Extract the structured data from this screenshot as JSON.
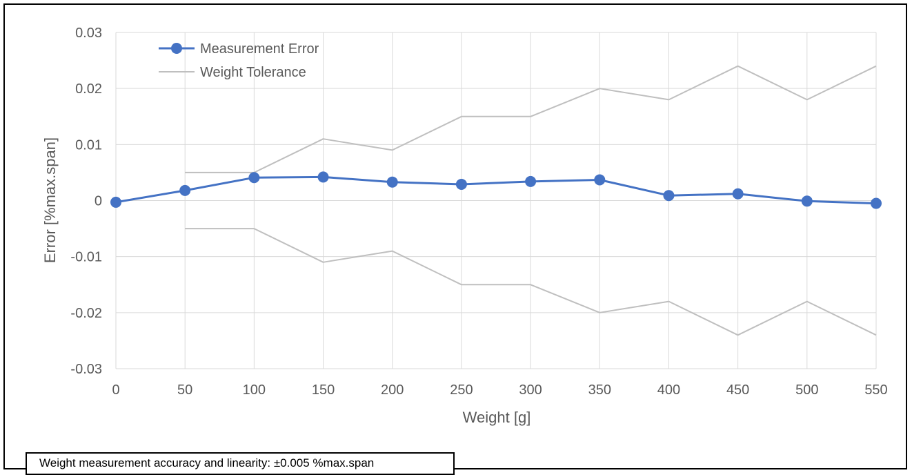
{
  "chart_data": {
    "type": "line",
    "xlabel": "Weight [g]",
    "ylabel": "Error [%max.span]",
    "xlim": [
      0,
      550
    ],
    "ylim": [
      -0.03,
      0.03
    ],
    "x_ticks": [
      "0",
      "50",
      "100",
      "150",
      "200",
      "250",
      "300",
      "350",
      "400",
      "450",
      "500",
      "550"
    ],
    "y_ticks": [
      "0.03",
      "0.02",
      "0.01",
      "0",
      "-0.01",
      "-0.02",
      "-0.03"
    ],
    "grid": true,
    "legend_position": "top-left",
    "series": [
      {
        "name": "Measurement Error",
        "color": "#4472c4",
        "marker": "circle",
        "x": [
          0,
          50,
          100,
          150,
          200,
          250,
          300,
          350,
          400,
          450,
          500,
          550
        ],
        "y": [
          -0.0003,
          0.0018,
          0.0041,
          0.0042,
          0.0033,
          0.0029,
          0.0034,
          0.0037,
          0.0009,
          0.0012,
          -0.0001,
          -0.0005
        ]
      },
      {
        "name": "Weight Tolerance",
        "color": "#bfbfbf",
        "marker": "none",
        "x": [
          50,
          100,
          150,
          200,
          250,
          300,
          350,
          400,
          450,
          500,
          550
        ],
        "y": [
          0.005,
          0.005,
          0.011,
          0.009,
          0.015,
          0.015,
          0.02,
          0.018,
          0.024,
          0.018,
          0.024
        ]
      },
      {
        "color": "#bfbfbf",
        "marker": "none",
        "x": [
          50,
          100,
          150,
          200,
          250,
          300,
          350,
          400,
          450,
          500,
          550
        ],
        "y": [
          -0.005,
          -0.005,
          -0.011,
          -0.009,
          -0.015,
          -0.015,
          -0.02,
          -0.018,
          -0.024,
          -0.018,
          -0.024
        ]
      }
    ]
  },
  "note": {
    "text": "Weight measurement accuracy and linearity: ±0.005 %max.span"
  }
}
